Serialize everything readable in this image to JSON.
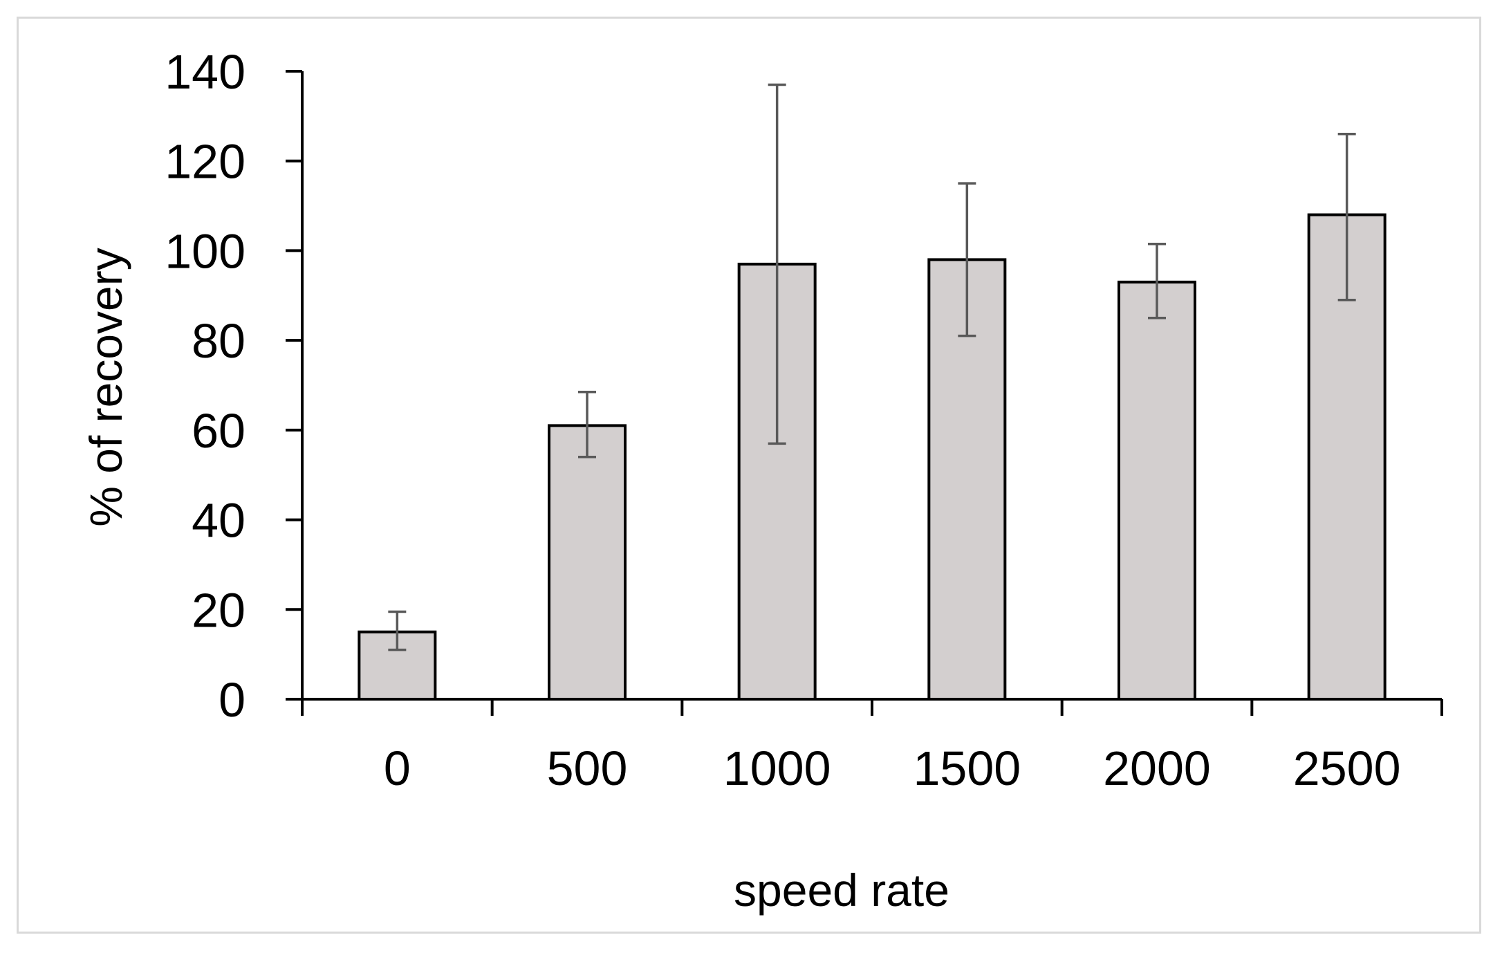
{
  "chart_data": {
    "type": "bar",
    "title": "",
    "xlabel": "speed rate",
    "ylabel": "% of recovery",
    "categories": [
      "0",
      "500",
      "1000",
      "1500",
      "2000",
      "2500"
    ],
    "values": [
      15,
      61,
      97,
      98,
      93,
      108
    ],
    "error_low": [
      11,
      54,
      57,
      81,
      85,
      89
    ],
    "error_high": [
      19.5,
      68.5,
      137,
      115,
      101.5,
      126
    ],
    "ylim": [
      0,
      140
    ],
    "yticks": [
      0,
      20,
      40,
      60,
      80,
      100,
      120,
      140
    ],
    "grid": false,
    "legend": "none",
    "colors": {
      "bar_fill": "#d3cfcf",
      "bar_stroke": "#000000",
      "error_bar": "#595959",
      "axis": "#000000"
    }
  }
}
